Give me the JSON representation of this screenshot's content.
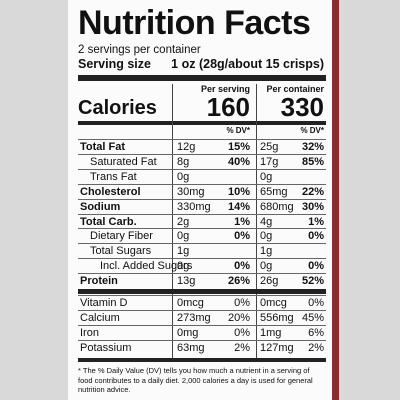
{
  "header": {
    "title": "Nutrition Facts",
    "servings": "2 servings per container",
    "serving_size_label": "Serving size",
    "serving_size_value": "1 oz (28g/about 15 crisps)"
  },
  "columns": [
    "Per serving",
    "Per container"
  ],
  "calories": {
    "label": "Calories",
    "values": [
      "160",
      "330"
    ]
  },
  "dv_header": [
    "% DV*",
    "% DV*"
  ],
  "nutrients": [
    {
      "name": "Total Fat",
      "serving": [
        "12g",
        "15%"
      ],
      "container": [
        "25g",
        "32%"
      ]
    },
    {
      "name": "Saturated Fat",
      "serving": [
        "8g",
        "40%"
      ],
      "container": [
        "17g",
        "85%"
      ]
    },
    {
      "name": "Trans Fat",
      "serving": [
        "0g",
        null
      ],
      "container": [
        "0g",
        null
      ]
    },
    {
      "name": "Cholesterol",
      "serving": [
        "30mg",
        "10%"
      ],
      "container": [
        "65mg",
        "22%"
      ]
    },
    {
      "name": "Sodium",
      "serving": [
        "330mg",
        "14%"
      ],
      "container": [
        "680mg",
        "30%"
      ]
    },
    {
      "name": "Total Carb.",
      "serving": [
        "2g",
        "1%"
      ],
      "container": [
        "4g",
        "1%"
      ]
    },
    {
      "name": "Dietary Fiber",
      "serving": [
        "0g",
        "0%"
      ],
      "container": [
        "0g",
        "0%"
      ]
    },
    {
      "name": "Total Sugars",
      "serving": [
        "1g",
        null
      ],
      "container": [
        "1g",
        null
      ]
    },
    {
      "name": "Incl. Added Sugars",
      "serving": [
        "0g",
        "0%"
      ],
      "container": [
        "0g",
        "0%"
      ]
    },
    {
      "name": "Protein",
      "serving": [
        "13g",
        "26%"
      ],
      "container": [
        "26g",
        "52%"
      ]
    }
  ],
  "vitamins": [
    {
      "name": "Vitamin D",
      "serving": [
        "0mcg",
        "0%"
      ],
      "container": [
        "0mcg",
        "0%"
      ]
    },
    {
      "name": "Calcium",
      "serving": [
        "273mg",
        "20%"
      ],
      "container": [
        "556mg",
        "45%"
      ]
    },
    {
      "name": "Iron",
      "serving": [
        "0mg",
        "0%"
      ],
      "container": [
        "1mg",
        "6%"
      ]
    },
    {
      "name": "Potassium",
      "serving": [
        "63mg",
        "2%"
      ],
      "container": [
        "127mg",
        "2%"
      ]
    }
  ],
  "footnote": "* The % Daily Value (DV) tells you how much a nutrient in a serving of food contributes to a daily diet. 2,000 calories a day is used for general nutrition advice."
}
